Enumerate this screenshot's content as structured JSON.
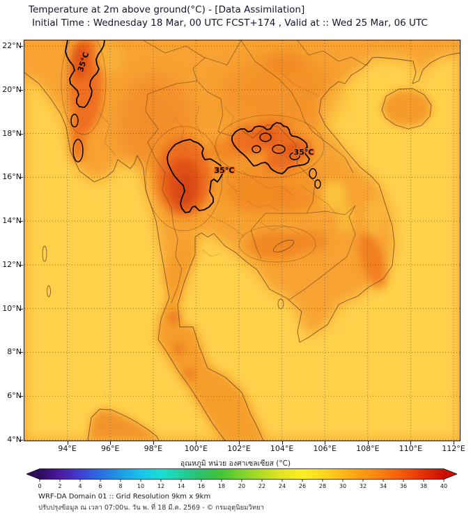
{
  "header": {
    "title": "Temperature at 2m above ground(°C) - [Data Assimilation]",
    "subtitle": "Initial Time : Wednesday 18 Mar, 00 UTC FCST+174 , Valid at :: Wed 25 Mar, 06 UTC"
  },
  "map": {
    "y_ticks": [
      "22°N",
      "20°N",
      "18°N",
      "16°N",
      "14°N",
      "12°N",
      "10°N",
      "8°N",
      "6°N",
      "4°N"
    ],
    "x_ticks": [
      "94°E",
      "96°E",
      "98°E",
      "100°E",
      "102°E",
      "104°E",
      "106°E",
      "108°E",
      "110°E",
      "112°E"
    ],
    "contour_labels": [
      "35°C",
      "35°C",
      "35°C"
    ]
  },
  "colorbar": {
    "title": "อุณหภูมิ หน่วย องศาเซลเซียส (°C)",
    "min": 0,
    "max": 40,
    "tick_values": [
      0,
      2,
      4,
      6,
      8,
      10,
      12,
      14,
      16,
      18,
      20,
      22,
      24,
      26,
      28,
      30,
      32,
      34,
      36,
      38,
      40
    ],
    "gradient": [
      {
        "v": 0,
        "c": "#2e0c5e"
      },
      {
        "v": 2,
        "c": "#4b1a9e"
      },
      {
        "v": 4,
        "c": "#3f3fd1"
      },
      {
        "v": 6,
        "c": "#2a6de0"
      },
      {
        "v": 8,
        "c": "#1e9be4"
      },
      {
        "v": 10,
        "c": "#19c3e8"
      },
      {
        "v": 12,
        "c": "#19dfd2"
      },
      {
        "v": 14,
        "c": "#22cfa0"
      },
      {
        "v": 16,
        "c": "#2ebf66"
      },
      {
        "v": 18,
        "c": "#46c436"
      },
      {
        "v": 20,
        "c": "#7ed32b"
      },
      {
        "v": 22,
        "c": "#b4dd26"
      },
      {
        "v": 24,
        "c": "#e4e322"
      },
      {
        "v": 26,
        "c": "#fdf021"
      },
      {
        "v": 28,
        "c": "#fdd91d"
      },
      {
        "v": 30,
        "c": "#fdb918"
      },
      {
        "v": 32,
        "c": "#fb9a13"
      },
      {
        "v": 34,
        "c": "#f97b0e"
      },
      {
        "v": 36,
        "c": "#f35708"
      },
      {
        "v": 38,
        "c": "#e32f05"
      },
      {
        "v": 40,
        "c": "#c81004"
      }
    ]
  },
  "footer": {
    "line1": "WRF-DA Domain 01 :: Grid Resolution 9km x 9km",
    "line2": "ปรับปรุงข้อมูล ณ เวลา 07:00น. วัน พ. ที่ 18 มี.ค. 2569 - © กรมอุตุนิยมวิทยา"
  },
  "chart_data": {
    "type": "heatmap",
    "title": "Temperature at 2m above ground (°C) - Data Assimilation",
    "units": "°C",
    "scale_range": [
      0,
      40
    ],
    "labeled_contour_level_c": 35,
    "lon_ticks_deg_e": [
      94,
      96,
      98,
      100,
      102,
      104,
      106,
      108,
      110,
      112
    ],
    "lat_ticks_deg_n": [
      4,
      6,
      8,
      10,
      12,
      14,
      16,
      18,
      20,
      22
    ],
    "legend_position": "bottom"
  }
}
